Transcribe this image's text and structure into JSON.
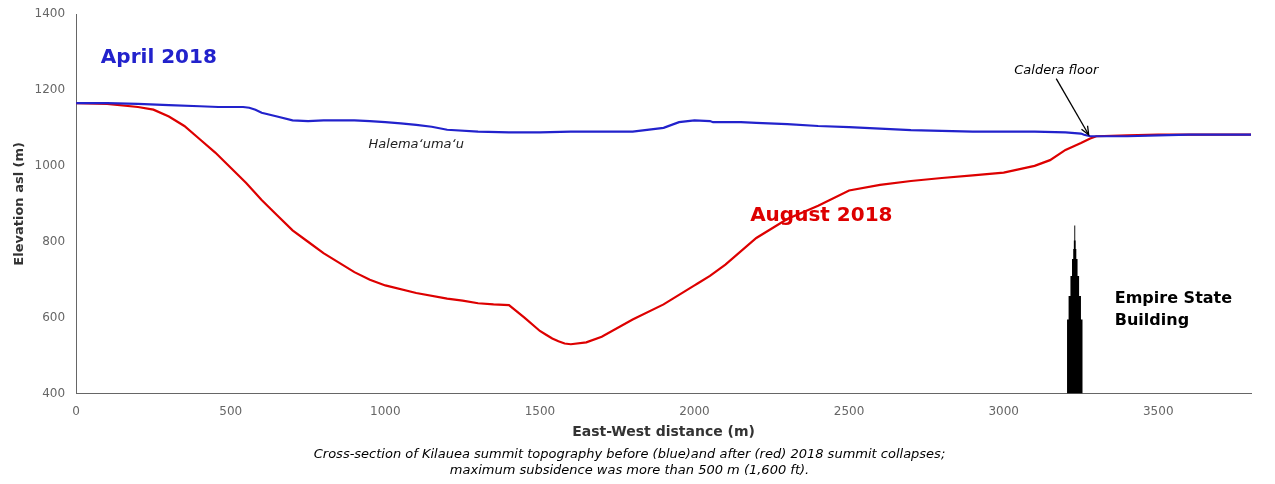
{
  "chart_data": {
    "type": "line",
    "xlabel": "East-West distance (m)",
    "ylabel": "Elevation asl (m)",
    "caption": [
      "Cross-section of Kilauea summit topography before (blue)and after (red) 2018 summit collapses;",
      "maximum subsidence was more than 500 m (1,600 ft)."
    ],
    "xlim": [
      0,
      3800
    ],
    "ylim": [
      400,
      1400
    ],
    "xticks": [
      0,
      500,
      1000,
      1500,
      2000,
      2500,
      3000,
      3500
    ],
    "yticks": [
      400,
      600,
      800,
      1000,
      1200,
      1400
    ],
    "grid": false,
    "series": [
      {
        "color": "#2222cc",
        "x": [
          0,
          100,
          200,
          300,
          400,
          460,
          500,
          540,
          560,
          580,
          600,
          650,
          700,
          750,
          800,
          900,
          950,
          1000,
          1050,
          1100,
          1150,
          1200,
          1300,
          1400,
          1500,
          1600,
          1700,
          1800,
          1900,
          1950,
          2000,
          2050,
          2060,
          2100,
          2150,
          2200,
          2300,
          2400,
          2500,
          2600,
          2700,
          2800,
          2900,
          3000,
          3100,
          3200,
          3250,
          3260,
          3270,
          3280,
          3300,
          3400,
          3500,
          3600,
          3700,
          3800
        ],
        "values": [
          1165,
          1165,
          1163,
          1160,
          1157,
          1155,
          1155,
          1155,
          1153,
          1148,
          1140,
          1130,
          1120,
          1118,
          1120,
          1120,
          1118,
          1115,
          1112,
          1108,
          1103,
          1095,
          1090,
          1088,
          1088,
          1090,
          1090,
          1090,
          1100,
          1115,
          1120,
          1118,
          1115,
          1115,
          1115,
          1113,
          1110,
          1105,
          1102,
          1098,
          1094,
          1092,
          1090,
          1090,
          1090,
          1088,
          1085,
          1082,
          1080,
          1078,
          1078,
          1078,
          1080,
          1082,
          1082,
          1082
        ]
      },
      {
        "color": "#dd0000",
        "x": [
          0,
          100,
          200,
          250,
          300,
          350,
          400,
          450,
          500,
          550,
          600,
          650,
          700,
          750,
          800,
          850,
          900,
          950,
          1000,
          1100,
          1200,
          1250,
          1300,
          1350,
          1400,
          1450,
          1500,
          1520,
          1540,
          1560,
          1580,
          1600,
          1650,
          1700,
          1800,
          1900,
          1950,
          2000,
          2010,
          2050,
          2100,
          2200,
          2300,
          2400,
          2500,
          2600,
          2700,
          2800,
          2900,
          3000,
          3100,
          3150,
          3200,
          3250,
          3270,
          3280,
          3300,
          3400,
          3500,
          3600,
          3700,
          3800
        ],
        "values": [
          1165,
          1163,
          1155,
          1148,
          1130,
          1105,
          1070,
          1035,
          995,
          955,
          910,
          870,
          830,
          800,
          770,
          745,
          720,
          700,
          685,
          665,
          650,
          645,
          638,
          635,
          633,
          600,
          565,
          555,
          545,
          538,
          532,
          530,
          535,
          550,
          595,
          635,
          660,
          685,
          690,
          710,
          740,
          810,
          860,
          895,
          935,
          950,
          960,
          968,
          975,
          982,
          1000,
          1015,
          1042,
          1060,
          1068,
          1072,
          1078,
          1080,
          1082,
          1082,
          1082,
          1082
        ]
      }
    ],
    "annotations": [
      {
        "text": "April 2018",
        "x": 80,
        "y": 1270,
        "color": "#2222cc"
      },
      {
        "text": "August 2018",
        "x": 2180,
        "y": 855,
        "color": "#dd0000"
      },
      {
        "text": "Halemaʻumaʻu",
        "x": 1100,
        "y": 1055
      },
      {
        "text": "Caldera floor",
        "x": 3170,
        "y": 1235,
        "arrow_to": [
          3275,
          1082
        ]
      }
    ],
    "building": {
      "label": [
        "Empire State",
        "Building"
      ],
      "x": 3230,
      "base": 400,
      "height": 443
    }
  }
}
